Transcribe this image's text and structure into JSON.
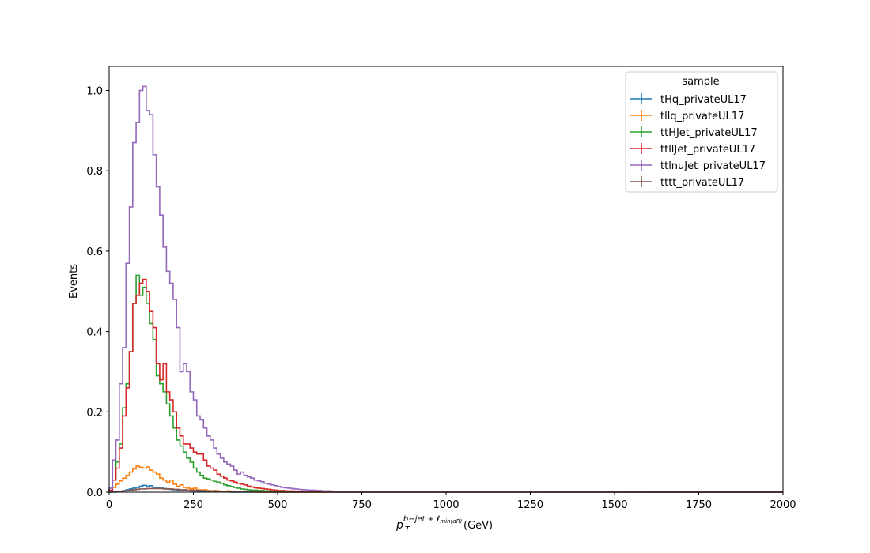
{
  "chart_data": {
    "type": "line",
    "drawstyle": "step-histogram",
    "xlabel": {
      "base": "p",
      "sub": "T",
      "sup": "b−jet + ℓ",
      "sup_sub": "min(dR)",
      "unit": "(GeV)"
    },
    "ylabel": "Events",
    "xlim": [
      0,
      2000
    ],
    "ylim": [
      0,
      1.06
    ],
    "xticks": [
      0,
      250,
      500,
      750,
      1000,
      1250,
      1500,
      1750,
      2000
    ],
    "xtick_labels": [
      "0",
      "250",
      "500",
      "750",
      "1000",
      "1250",
      "1500",
      "1750",
      "2000"
    ],
    "yticks": [
      0.0,
      0.2,
      0.4,
      0.6,
      0.8,
      1.0
    ],
    "ytick_labels": [
      "0.0",
      "0.2",
      "0.4",
      "0.6",
      "0.8",
      "1.0"
    ],
    "grid": false,
    "legend": {
      "title": "sample",
      "placement": "top-right",
      "entries": [
        "tHq_privateUL17",
        "tllq_privateUL17",
        "ttHJet_privateUL17",
        "ttllJet_privateUL17",
        "ttlnuJet_privateUL17",
        "tttt_privateUL17"
      ]
    },
    "bin_width": 10,
    "series": [
      {
        "name": "tHq_privateUL17",
        "color": "#1f77b4",
        "values": [
          0.0,
          0.0,
          0.001,
          0.002,
          0.004,
          0.006,
          0.008,
          0.01,
          0.012,
          0.015,
          0.017,
          0.015,
          0.016,
          0.012,
          0.011,
          0.01,
          0.009,
          0.008,
          0.007,
          0.006,
          0.005,
          0.005,
          0.004,
          0.004,
          0.003,
          0.003,
          0.002,
          0.002,
          0.002,
          0.001,
          0.001,
          0.001,
          0.001,
          0.001,
          0.001,
          0.001,
          0.0,
          0.0,
          0.0,
          0.0
        ]
      },
      {
        "name": "tllq_privateUL17",
        "color": "#ff7f0e",
        "values": [
          0.005,
          0.012,
          0.02,
          0.028,
          0.035,
          0.042,
          0.05,
          0.058,
          0.065,
          0.062,
          0.06,
          0.063,
          0.055,
          0.05,
          0.045,
          0.035,
          0.03,
          0.025,
          0.03,
          0.02,
          0.015,
          0.018,
          0.012,
          0.01,
          0.008,
          0.01,
          0.006,
          0.005,
          0.006,
          0.004,
          0.003,
          0.004,
          0.003,
          0.002,
          0.002,
          0.003,
          0.002,
          0.001,
          0.001,
          0.001,
          0.001,
          0.001,
          0.001,
          0.0,
          0.0,
          0.0,
          0.0,
          0.0,
          0.0,
          0.0
        ]
      },
      {
        "name": "ttHJet_privateUL17",
        "color": "#2ca02c",
        "values": [
          0.005,
          0.03,
          0.075,
          0.12,
          0.21,
          0.27,
          0.35,
          0.47,
          0.54,
          0.49,
          0.51,
          0.47,
          0.42,
          0.38,
          0.29,
          0.27,
          0.25,
          0.22,
          0.19,
          0.16,
          0.13,
          0.115,
          0.1,
          0.085,
          0.075,
          0.06,
          0.05,
          0.042,
          0.035,
          0.033,
          0.03,
          0.027,
          0.025,
          0.022,
          0.018,
          0.016,
          0.014,
          0.012,
          0.01,
          0.008,
          0.007,
          0.006,
          0.005,
          0.005,
          0.004,
          0.004,
          0.003,
          0.003,
          0.002,
          0.002,
          0.002,
          0.002,
          0.001,
          0.001,
          0.001,
          0.001,
          0.001,
          0.001,
          0.001,
          0.001
        ]
      },
      {
        "name": "ttllJet_privateUL17",
        "color": "#d62728",
        "values": [
          0.005,
          0.03,
          0.06,
          0.11,
          0.19,
          0.26,
          0.35,
          0.47,
          0.49,
          0.52,
          0.53,
          0.5,
          0.45,
          0.41,
          0.32,
          0.28,
          0.32,
          0.25,
          0.23,
          0.2,
          0.16,
          0.14,
          0.12,
          0.12,
          0.11,
          0.1,
          0.095,
          0.095,
          0.08,
          0.065,
          0.06,
          0.055,
          0.045,
          0.04,
          0.035,
          0.03,
          0.028,
          0.025,
          0.022,
          0.02,
          0.018,
          0.015,
          0.013,
          0.011,
          0.01,
          0.009,
          0.008,
          0.007,
          0.006,
          0.005,
          0.004,
          0.004,
          0.003,
          0.003,
          0.003,
          0.002,
          0.002,
          0.002,
          0.002,
          0.001,
          0.001,
          0.001,
          0.001,
          0.001,
          0.001,
          0.001,
          0.001,
          0.001,
          0.001,
          0.001
        ]
      },
      {
        "name": "ttlnuJet_privateUL17",
        "color": "#9467bd",
        "values": [
          0.01,
          0.08,
          0.13,
          0.27,
          0.36,
          0.57,
          0.71,
          0.87,
          0.92,
          1.0,
          1.01,
          0.95,
          0.94,
          0.84,
          0.76,
          0.69,
          0.61,
          0.55,
          0.52,
          0.48,
          0.41,
          0.3,
          0.32,
          0.3,
          0.25,
          0.23,
          0.19,
          0.18,
          0.16,
          0.14,
          0.13,
          0.11,
          0.095,
          0.085,
          0.075,
          0.07,
          0.065,
          0.055,
          0.045,
          0.05,
          0.042,
          0.038,
          0.035,
          0.03,
          0.028,
          0.026,
          0.022,
          0.02,
          0.018,
          0.016,
          0.014,
          0.012,
          0.011,
          0.01,
          0.009,
          0.008,
          0.007,
          0.006,
          0.006,
          0.005,
          0.005,
          0.004,
          0.004,
          0.003,
          0.003,
          0.003,
          0.002,
          0.002,
          0.002,
          0.002,
          0.002,
          0.001,
          0.001,
          0.001,
          0.001,
          0.001,
          0.001,
          0.001,
          0.001,
          0.001,
          0.001,
          0.001,
          0.001,
          0.001,
          0.001,
          0.001,
          0.001,
          0.001,
          0.001,
          0.001
        ]
      },
      {
        "name": "tttt_privateUL17",
        "color": "#8c564b",
        "values": [
          0.0,
          0.001,
          0.001,
          0.002,
          0.003,
          0.004,
          0.005,
          0.006,
          0.007,
          0.008,
          0.008,
          0.009,
          0.009,
          0.009,
          0.009,
          0.009,
          0.008,
          0.008,
          0.008,
          0.007,
          0.007,
          0.006,
          0.006,
          0.005,
          0.005,
          0.005,
          0.004,
          0.004,
          0.003,
          0.003,
          0.003,
          0.003,
          0.002,
          0.002,
          0.002,
          0.002,
          0.002,
          0.001,
          0.001,
          0.001,
          0.001,
          0.001,
          0.001,
          0.001,
          0.001,
          0.0,
          0.0,
          0.0,
          0.0,
          0.0
        ]
      }
    ]
  }
}
